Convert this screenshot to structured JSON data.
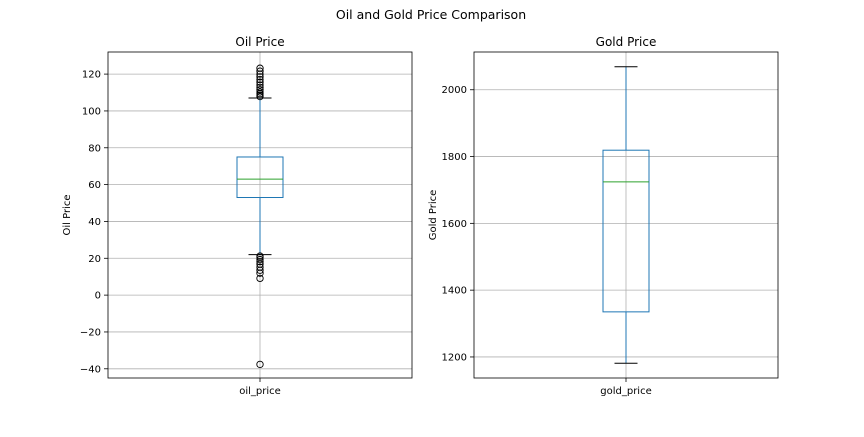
{
  "figure": {
    "title": "Oil and Gold Price Comparison"
  },
  "colors": {
    "box": "#1f77b4",
    "median": "#2ca02c",
    "whisker": "#1f77b4",
    "cap": "#000000",
    "flier": "#000000",
    "grid": "#b0b0b0",
    "axes": "#000000"
  },
  "chart_data": [
    {
      "type": "box",
      "title": "Oil Price",
      "xlabel": "",
      "ylabel": "Oil Price",
      "categories": [
        "oil_price"
      ],
      "ylim": [
        -45,
        132
      ],
      "yticks": [
        -40,
        -20,
        0,
        20,
        40,
        60,
        80,
        100,
        120
      ],
      "grid": true,
      "box": {
        "whisker_low": 22,
        "q1": 53,
        "median": 63,
        "q3": 75,
        "whisker_high": 107
      },
      "outliers": [
        -37.6,
        9.1,
        11.9,
        13.5,
        15.2,
        16.8,
        18.1,
        19.3,
        20.4,
        21.2,
        107.8,
        108.6,
        109.4,
        110.3,
        111.5,
        112.8,
        114.1,
        115.6,
        117.0,
        118.5,
        120.0,
        121.6,
        123.2
      ]
    },
    {
      "type": "box",
      "title": "Gold Price",
      "xlabel": "",
      "ylabel": "Gold Price",
      "categories": [
        "gold_price"
      ],
      "ylim": [
        1137,
        2113
      ],
      "yticks": [
        1200,
        1400,
        1600,
        1800,
        2000
      ],
      "grid": true,
      "box": {
        "whisker_low": 1181,
        "q1": 1335,
        "median": 1724,
        "q3": 1819,
        "whisker_high": 2069
      },
      "outliers": []
    }
  ]
}
